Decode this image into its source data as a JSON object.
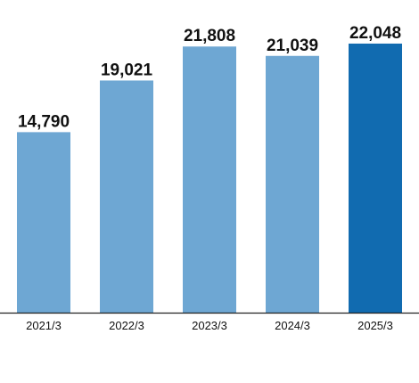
{
  "chart_data": {
    "type": "bar",
    "categories": [
      "2021/3",
      "2022/3",
      "2023/3",
      "2024/3",
      "2025/3"
    ],
    "values": [
      14790,
      19021,
      21808,
      21039,
      22048
    ],
    "value_labels": [
      "14,790",
      "19,021",
      "21,808",
      "21,039",
      "22,048"
    ],
    "title": "",
    "xlabel": "",
    "ylabel": "",
    "ylim": [
      0,
      30500
    ],
    "grid": false,
    "colors": {
      "default": "#6ea7d3",
      "highlight": "#116bb0",
      "highlight_category": "2025/3",
      "axis": "#222222",
      "text": "#111111"
    }
  }
}
